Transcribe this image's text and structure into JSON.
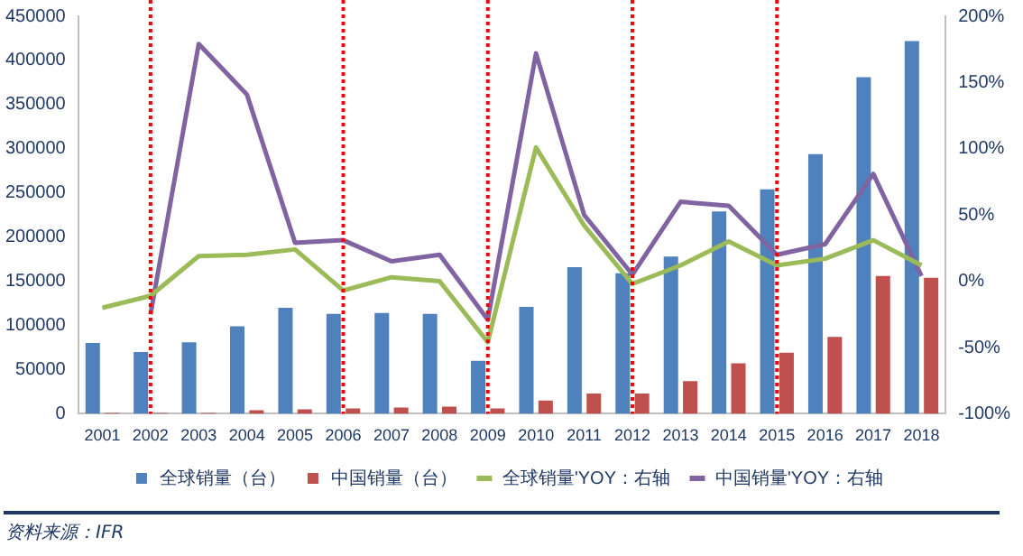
{
  "chart_data": {
    "type": "bar",
    "categories": [
      "2001",
      "2002",
      "2003",
      "2004",
      "2005",
      "2006",
      "2007",
      "2008",
      "2009",
      "2010",
      "2011",
      "2012",
      "2013",
      "2014",
      "2015",
      "2016",
      "2017",
      "2018"
    ],
    "series": [
      {
        "name": "全球销量（台）",
        "color": "#4f81bd",
        "values": [
          80000,
          70000,
          81000,
          99000,
          120000,
          113000,
          114000,
          113000,
          60000,
          121000,
          166000,
          159000,
          178000,
          229000,
          254000,
          294000,
          381000,
          422000
        ]
      },
      {
        "name": "中国销量（台）",
        "color": "#c0504d",
        "values": [
          1000,
          1000,
          1000,
          4000,
          5000,
          6000,
          7000,
          8000,
          6000,
          15000,
          23000,
          23000,
          37000,
          57000,
          69000,
          87000,
          156000,
          154000
        ]
      },
      {
        "name": "全球销量'YOY：右轴",
        "type": "line",
        "axis": "y2",
        "color": "#9bbb59",
        "values": [
          -20,
          -11,
          19,
          20,
          24,
          -7,
          3,
          0,
          -46,
          101,
          42,
          -2,
          12,
          30,
          12,
          17,
          31,
          12
        ]
      },
      {
        "name": "中国销量'YOY：右轴",
        "type": "line",
        "axis": "y2",
        "color": "#8064a2",
        "values": [
          null,
          -25,
          179,
          141,
          29,
          31,
          15,
          20,
          -29,
          172,
          50,
          5,
          60,
          57,
          20,
          28,
          81,
          4
        ]
      }
    ],
    "ylim": [
      0,
      450000
    ],
    "yticks": [
      0,
      50000,
      100000,
      150000,
      200000,
      250000,
      300000,
      350000,
      400000,
      450000
    ],
    "y2lim": [
      -100,
      200
    ],
    "y2ticks": [
      {
        "value": -100,
        "label": "-100%"
      },
      {
        "value": -50,
        "label": "-50%"
      },
      {
        "value": 0,
        "label": "0%"
      },
      {
        "value": 50,
        "label": "50%"
      },
      {
        "value": 100,
        "label": "100%"
      },
      {
        "value": 150,
        "label": "150%"
      },
      {
        "value": 200,
        "label": "200%"
      }
    ],
    "ref_lines": [
      {
        "axis": "x",
        "value": "2002",
        "color": "#ff0000",
        "line_style": "dotted"
      },
      {
        "axis": "x",
        "value": "2006",
        "color": "#ff0000",
        "line_style": "dotted"
      },
      {
        "axis": "x",
        "value": "2009",
        "color": "#ff0000",
        "line_style": "dotted"
      },
      {
        "axis": "x",
        "value": "2012",
        "color": "#ff0000",
        "line_style": "dotted"
      },
      {
        "axis": "x",
        "value": "2015",
        "color": "#ff0000",
        "line_style": "dotted"
      }
    ],
    "grid": false,
    "legend": "bottom",
    "marker": "none",
    "line_style": "solid",
    "annotations": [
      "资料来源：IFR"
    ]
  }
}
